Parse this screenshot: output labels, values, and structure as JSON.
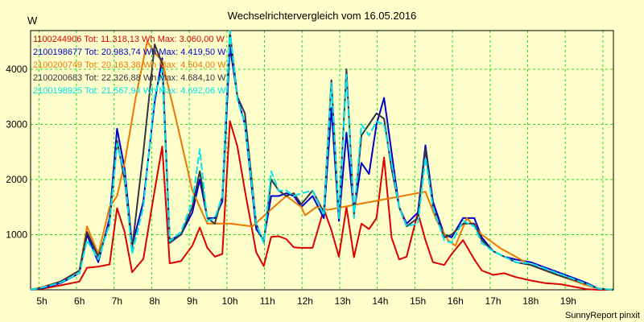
{
  "chart_data": {
    "type": "line",
    "title": "Wechselrichtervergleich vom 16.05.2016",
    "ylabel": "W",
    "xlabel": "",
    "footer": "SunnyReport pinxit",
    "xlim": [
      4.7,
      20.2
    ],
    "ylim": [
      0,
      4700
    ],
    "x_ticks": [
      5,
      6,
      7,
      8,
      9,
      10,
      11,
      12,
      13,
      14,
      15,
      16,
      17,
      18,
      19
    ],
    "x_tick_labels": [
      "5h",
      "6h",
      "7h",
      "8h",
      "9h",
      "10h",
      "11h",
      "12h",
      "13h",
      "14h",
      "15h",
      "16h",
      "17h",
      "18h",
      "19h"
    ],
    "y_ticks": [
      1000,
      2000,
      3000,
      4000
    ],
    "y_tick_labels": [
      "1000",
      "2000",
      "3000",
      "4000"
    ],
    "x_grid": [
      4.92,
      5.92,
      6.92,
      7.92,
      8.92,
      9.92,
      10.92,
      11.92,
      12.92,
      13.92,
      14.92,
      15.92,
      16.92,
      17.92,
      18.92,
      19.92
    ],
    "legend_position": "top-left",
    "series": [
      {
        "name": "1100244906",
        "legend": "1100244906 Tot: 11.318,13 Wh Max: 3.060,00 W",
        "color": "#dd0000",
        "width": 2,
        "x": [
          4.7,
          5.0,
          5.5,
          6.0,
          6.2,
          6.5,
          6.8,
          7.0,
          7.2,
          7.4,
          7.7,
          8.0,
          8.2,
          8.4,
          8.7,
          9.0,
          9.2,
          9.4,
          9.6,
          9.8,
          10.0,
          10.2,
          10.4,
          10.7,
          10.9,
          11.1,
          11.3,
          11.5,
          11.7,
          11.9,
          12.2,
          12.5,
          12.7,
          12.9,
          13.1,
          13.3,
          13.5,
          13.7,
          13.9,
          14.1,
          14.3,
          14.5,
          14.7,
          15.0,
          15.2,
          15.4,
          15.7,
          15.9,
          16.2,
          16.5,
          16.7,
          17.0,
          17.3,
          17.6,
          18.0,
          18.4,
          18.8,
          19.2,
          19.5,
          19.8,
          20.2
        ],
        "y": [
          0,
          20,
          80,
          150,
          400,
          420,
          460,
          1480,
          1050,
          320,
          560,
          1800,
          2600,
          480,
          520,
          800,
          1130,
          760,
          600,
          650,
          3060,
          2600,
          1800,
          680,
          430,
          960,
          970,
          920,
          770,
          760,
          760,
          1460,
          1080,
          600,
          1500,
          590,
          1200,
          1100,
          1300,
          2400,
          950,
          550,
          600,
          1400,
          900,
          500,
          450,
          650,
          900,
          550,
          350,
          270,
          300,
          230,
          170,
          120,
          100,
          50,
          10,
          0,
          0
        ]
      },
      {
        "name": "2100198677",
        "legend": "2100198677 Tot: 20.983,74 Wh Max: 4.419,50 W",
        "color": "#0000cc",
        "width": 2,
        "x": [
          4.7,
          5.0,
          5.5,
          6.0,
          6.2,
          6.5,
          6.8,
          7.0,
          7.2,
          7.4,
          7.7,
          8.0,
          8.2,
          8.4,
          8.7,
          9.0,
          9.2,
          9.4,
          9.6,
          9.8,
          10.0,
          10.2,
          10.4,
          10.7,
          10.9,
          11.1,
          11.3,
          11.5,
          11.7,
          11.9,
          12.2,
          12.5,
          12.7,
          12.9,
          13.1,
          13.3,
          13.5,
          13.7,
          13.9,
          14.1,
          14.3,
          14.5,
          14.7,
          15.0,
          15.2,
          15.4,
          15.7,
          15.9,
          16.2,
          16.5,
          16.7,
          17.0,
          17.3,
          17.6,
          18.0,
          18.4,
          18.8,
          19.2,
          19.5,
          19.8,
          20.2
        ],
        "y": [
          0,
          30,
          120,
          300,
          1000,
          500,
          1300,
          2920,
          2200,
          800,
          1600,
          3400,
          4200,
          900,
          1000,
          1400,
          2000,
          1300,
          1300,
          1600,
          4419,
          3500,
          3000,
          1100,
          900,
          1700,
          1700,
          1750,
          1700,
          1500,
          1700,
          1300,
          3300,
          1250,
          2850,
          1400,
          2300,
          2100,
          3000,
          3480,
          2500,
          1500,
          1200,
          1400,
          2620,
          1600,
          1000,
          950,
          1300,
          1300,
          950,
          700,
          600,
          550,
          500,
          400,
          300,
          200,
          120,
          20,
          0
        ]
      },
      {
        "name": "2100200749",
        "legend": "2100200749 Tot: 20.163,38 Wh Max: 4.504,00 W",
        "color": "#ee7700",
        "width": 2,
        "x": [
          4.7,
          5.0,
          5.5,
          6.0,
          6.2,
          6.5,
          6.8,
          7.0,
          7.2,
          7.5,
          7.8,
          8.0,
          8.2,
          8.6,
          9.0,
          9.4,
          10.0,
          10.6,
          11.0,
          11.5,
          11.9,
          12.0,
          12.3,
          12.6,
          15.2,
          15.5,
          15.8,
          16.0,
          16.3,
          16.7,
          17.2,
          17.6,
          18.0,
          18.5,
          19.0,
          19.4,
          19.8,
          20.2
        ],
        "y": [
          0,
          50,
          150,
          350,
          1150,
          650,
          1500,
          1700,
          2300,
          3500,
          4504,
          4300,
          4150,
          3000,
          1800,
          1200,
          1200,
          1150,
          1400,
          1700,
          1500,
          1350,
          1500,
          1450,
          1780,
          1250,
          900,
          800,
          1300,
          1000,
          750,
          600,
          450,
          320,
          200,
          100,
          20,
          0
        ]
      },
      {
        "name": "2100200683",
        "legend": "2100200683 Tot: 22.326,88 Wh Max: 4.684,10 W",
        "color": "#333344",
        "width": 2,
        "x": [
          4.7,
          5.0,
          5.5,
          6.0,
          6.2,
          6.5,
          6.8,
          7.0,
          7.2,
          7.4,
          7.7,
          8.0,
          8.2,
          8.4,
          8.7,
          9.0,
          9.2,
          9.4,
          9.6,
          9.8,
          10.0,
          10.2,
          10.4,
          10.7,
          10.9,
          11.1,
          11.3,
          11.5,
          11.7,
          11.9,
          12.2,
          12.5,
          12.7,
          12.9,
          13.1,
          13.3,
          13.5,
          13.7,
          13.9,
          14.1,
          14.3,
          14.5,
          14.7,
          15.0,
          15.2,
          15.4,
          15.7,
          15.9,
          16.2,
          16.5,
          16.7,
          17.0,
          17.3,
          17.6,
          18.0,
          18.4,
          18.8,
          19.2,
          19.5,
          19.8,
          20.2
        ],
        "y": [
          0,
          40,
          150,
          350,
          1050,
          600,
          1200,
          2700,
          2000,
          750,
          2500,
          4450,
          4100,
          850,
          1000,
          1500,
          2150,
          1300,
          1200,
          1700,
          4684,
          3500,
          3200,
          1200,
          850,
          2000,
          1800,
          1700,
          1750,
          1550,
          1800,
          1400,
          3800,
          1300,
          4000,
          1350,
          2800,
          3000,
          3200,
          3100,
          2200,
          1500,
          1150,
          1300,
          2550,
          1500,
          950,
          1000,
          1200,
          1200,
          900,
          700,
          600,
          500,
          450,
          350,
          250,
          170,
          100,
          20,
          0
        ]
      },
      {
        "name": "2100198925",
        "legend": "2100198925 Tot: 21.567,94 Wh Max: 4.692,06 W",
        "color": "#00e5ee",
        "width": 2,
        "dash": true,
        "x": [
          4.7,
          5.0,
          5.5,
          6.0,
          6.2,
          6.5,
          6.8,
          7.0,
          7.2,
          7.4,
          7.7,
          8.0,
          8.2,
          8.4,
          8.7,
          9.0,
          9.2,
          9.4,
          9.6,
          9.8,
          10.0,
          10.2,
          10.4,
          10.7,
          10.9,
          11.1,
          11.3,
          11.5,
          11.7,
          11.9,
          12.2,
          12.5,
          12.7,
          12.9,
          13.1,
          13.3,
          13.5,
          13.7,
          13.9,
          14.1,
          14.3,
          14.5,
          14.7,
          15.0,
          15.2,
          15.4,
          15.7,
          15.9,
          16.2,
          16.5,
          16.7,
          17.0,
          17.3,
          17.6,
          18.0,
          18.4,
          18.8,
          19.2,
          19.5,
          19.8,
          20.2
        ],
        "y": [
          0,
          40,
          130,
          300,
          900,
          550,
          1200,
          2650,
          2100,
          650,
          1500,
          3500,
          4000,
          880,
          1050,
          1600,
          2550,
          1250,
          1300,
          1700,
          4692,
          3450,
          3000,
          1200,
          850,
          2150,
          1800,
          1800,
          1700,
          1750,
          1800,
          1350,
          3750,
          1300,
          3900,
          1300,
          3000,
          2800,
          3050,
          3000,
          2300,
          1500,
          1150,
          1200,
          2400,
          1500,
          900,
          850,
          1250,
          1150,
          850,
          700,
          600,
          500,
          480,
          380,
          280,
          180,
          100,
          20,
          0
        ]
      }
    ]
  }
}
